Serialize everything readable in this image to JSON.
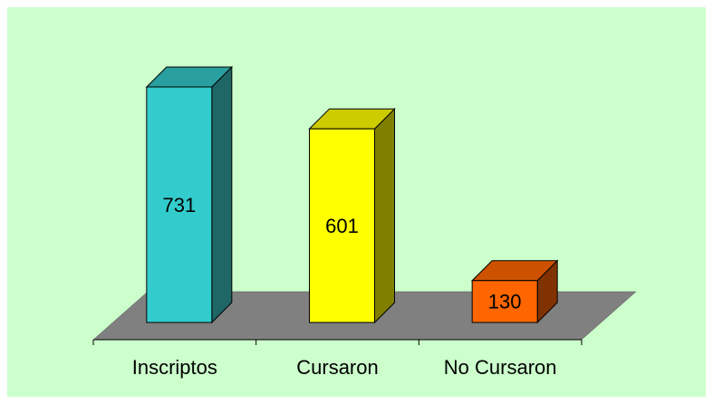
{
  "chart_data": {
    "type": "bar3d",
    "categories": [
      "Inscriptos",
      "Cursaron",
      "No Cursaron"
    ],
    "values": [
      731,
      601,
      130
    ],
    "colors": [
      "#33cccc",
      "#ffff00",
      "#ff6600"
    ],
    "top_colors": [
      "#2a9f9f",
      "#cccc00",
      "#cc5200"
    ],
    "side_colors": [
      "#1f6666",
      "#808000",
      "#803300"
    ]
  }
}
